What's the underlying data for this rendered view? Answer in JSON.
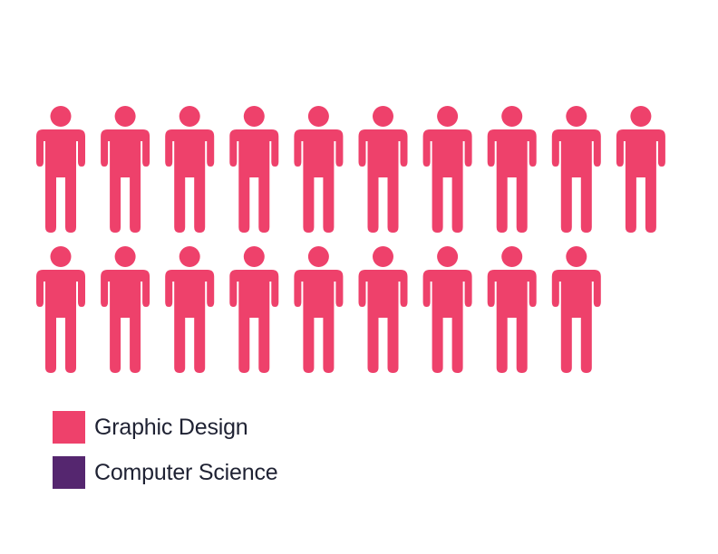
{
  "chart_data": {
    "type": "pictograph",
    "total_icons": 20,
    "grid": {
      "rows": 2,
      "columns": 10
    },
    "series": [
      {
        "name": "Graphic Design",
        "value": 19.5,
        "color": "#ee416b"
      },
      {
        "name": "Computer Science",
        "value": 0.5,
        "color": "#55266f"
      }
    ],
    "legend_position": "bottom-left"
  }
}
